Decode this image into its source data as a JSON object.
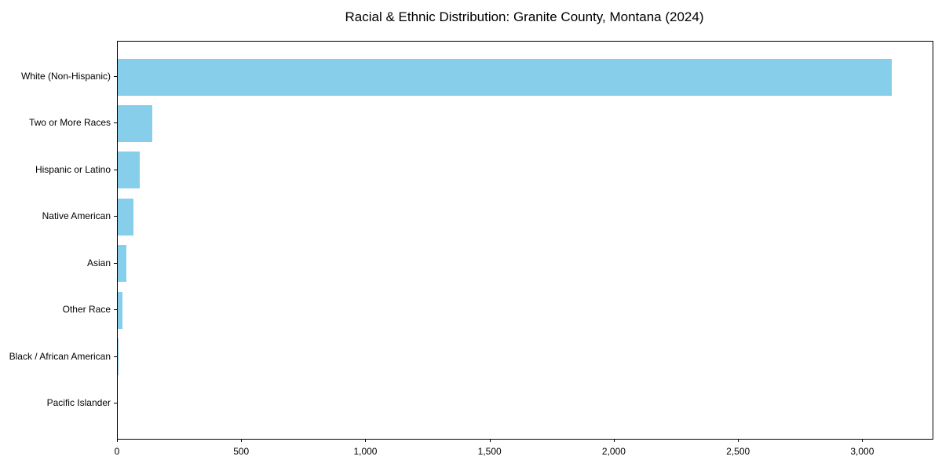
{
  "chart_data": {
    "type": "bar",
    "orientation": "horizontal",
    "title": "Racial & Ethnic Distribution: Granite County, Montana (2024)",
    "categories": [
      "White (Non-Hispanic)",
      "Two or More Races",
      "Hispanic or Latino",
      "Native American",
      "Asian",
      "Other Race",
      "Black / African American",
      "Pacific Islander"
    ],
    "values": [
      3115,
      140,
      90,
      63,
      35,
      18,
      3,
      0
    ],
    "bar_color": "#87CEEB",
    "axis_color": "#000000",
    "text_color": "#000000",
    "background_color": "#ffffff",
    "xlim": [
      0,
      3280
    ],
    "x_ticks": [
      0,
      500,
      1000,
      1500,
      2000,
      2500,
      3000
    ],
    "x_tick_labels": [
      "0",
      "500",
      "1,000",
      "1,500",
      "2,000",
      "2,500",
      "3,000"
    ],
    "xlabel": "",
    "ylabel": "",
    "grid": false,
    "legend": null
  }
}
